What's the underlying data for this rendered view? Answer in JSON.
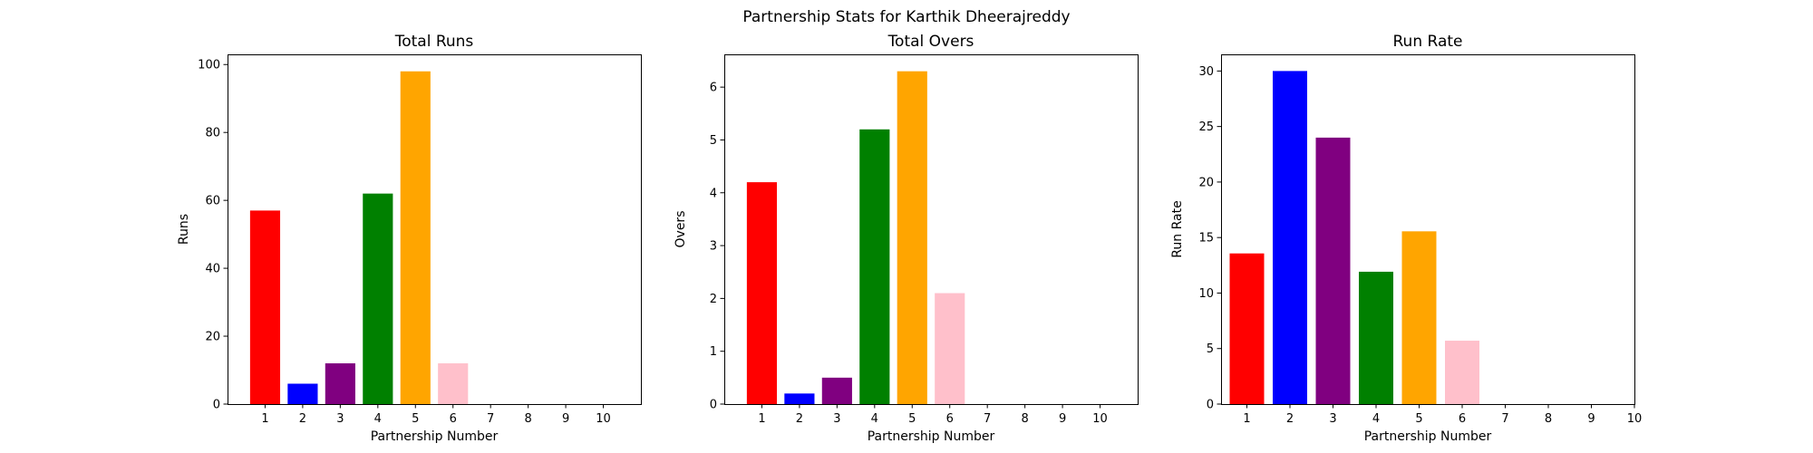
{
  "figure": {
    "suptitle": "Partnership Stats for Karthik Dheerajreddy"
  },
  "chart_data": [
    {
      "type": "bar",
      "title": "Total Runs",
      "xlabel": "Partnership Number",
      "ylabel": "Runs",
      "categories": [
        "1",
        "2",
        "3",
        "4",
        "5",
        "6",
        "7",
        "8",
        "9",
        "10"
      ],
      "values": [
        57,
        6,
        12,
        62,
        98,
        12,
        0,
        0,
        0,
        0
      ],
      "colors": [
        "#ff0000",
        "#0000ff",
        "#800080",
        "#008000",
        "#ffa500",
        "#ffc0cb",
        "#ff0000",
        "#0000ff",
        "#800080",
        "#008000"
      ],
      "xlim": [
        0,
        11
      ],
      "ylim": [
        0,
        103
      ],
      "yticks": [
        0,
        20,
        40,
        60,
        80,
        100
      ],
      "ytick_labels": [
        "0",
        "20",
        "40",
        "60",
        "80",
        "100"
      ],
      "grid": false,
      "legend": "none"
    },
    {
      "type": "bar",
      "title": "Total Overs",
      "xlabel": "Partnership Number",
      "ylabel": "Overs",
      "categories": [
        "1",
        "2",
        "3",
        "4",
        "5",
        "6",
        "7",
        "8",
        "9",
        "10"
      ],
      "values": [
        4.2,
        0.2,
        0.5,
        5.2,
        6.3,
        2.1,
        0,
        0,
        0,
        0
      ],
      "colors": [
        "#ff0000",
        "#0000ff",
        "#800080",
        "#008000",
        "#ffa500",
        "#ffc0cb",
        "#ff0000",
        "#0000ff",
        "#800080",
        "#008000"
      ],
      "xlim": [
        0,
        11
      ],
      "ylim": [
        0,
        6.62
      ],
      "yticks": [
        0,
        1,
        2,
        3,
        4,
        5,
        6
      ],
      "ytick_labels": [
        "0",
        "1",
        "2",
        "3",
        "4",
        "5",
        "6"
      ],
      "grid": false,
      "legend": "none"
    },
    {
      "type": "bar",
      "title": "Run Rate",
      "xlabel": "Partnership Number",
      "ylabel": "Run Rate",
      "categories": [
        "1",
        "2",
        "3",
        "4",
        "5",
        "6",
        "7",
        "8",
        "9",
        "10"
      ],
      "values": [
        13.57,
        30,
        24,
        11.92,
        15.56,
        5.71,
        0,
        0,
        0,
        0
      ],
      "colors": [
        "#ff0000",
        "#0000ff",
        "#800080",
        "#008000",
        "#ffa500",
        "#ffc0cb",
        "#ff0000",
        "#0000ff",
        "#800080",
        "#008000"
      ],
      "xlim": [
        0.4,
        10
      ],
      "ylim": [
        0,
        31.5
      ],
      "yticks": [
        0,
        5,
        10,
        15,
        20,
        25,
        30
      ],
      "ytick_labels": [
        "0",
        "5",
        "10",
        "15",
        "20",
        "25",
        "30"
      ],
      "grid": false,
      "legend": "none"
    }
  ]
}
